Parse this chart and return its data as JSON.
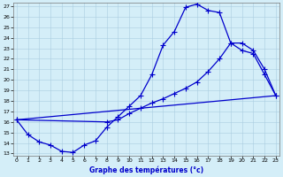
{
  "title": "Graphe des températures (°c)",
  "bg_color": "#d4eef8",
  "line_color": "#0000cc",
  "grid_color": "#aacce0",
  "xlim": [
    0,
    23
  ],
  "ylim": [
    13,
    27
  ],
  "xticks": [
    0,
    1,
    2,
    3,
    4,
    5,
    6,
    7,
    8,
    9,
    10,
    11,
    12,
    13,
    14,
    15,
    16,
    17,
    18,
    19,
    20,
    21,
    22,
    23
  ],
  "yticks": [
    13,
    14,
    15,
    16,
    17,
    18,
    19,
    20,
    21,
    22,
    23,
    24,
    25,
    26,
    27
  ],
  "curve_main": {
    "x": [
      0,
      1,
      2,
      3,
      4,
      5,
      6,
      7,
      8,
      9,
      10,
      11,
      12,
      13,
      14,
      15,
      16,
      17,
      18,
      19,
      20,
      21,
      22,
      23
    ],
    "y": [
      16.2,
      14.8,
      14.1,
      13.8,
      13.2,
      13.1,
      13.8,
      14.2,
      15.5,
      16.5,
      17.5,
      18.5,
      20.5,
      23.3,
      24.6,
      26.9,
      27.2,
      26.6,
      26.4,
      23.5,
      22.8,
      22.5,
      20.5,
      18.5
    ]
  },
  "curve_secondary": {
    "x": [
      0,
      8,
      9,
      10,
      11,
      12,
      13,
      14,
      15,
      16,
      17,
      18,
      19,
      20,
      21,
      22,
      23
    ],
    "y": [
      16.2,
      16.0,
      16.2,
      16.8,
      17.3,
      17.8,
      18.2,
      18.7,
      19.2,
      19.8,
      20.8,
      22.0,
      23.5,
      23.5,
      22.8,
      21.0,
      18.5
    ]
  },
  "curve_linear": {
    "x": [
      0,
      23
    ],
    "y": [
      16.2,
      18.5
    ]
  }
}
